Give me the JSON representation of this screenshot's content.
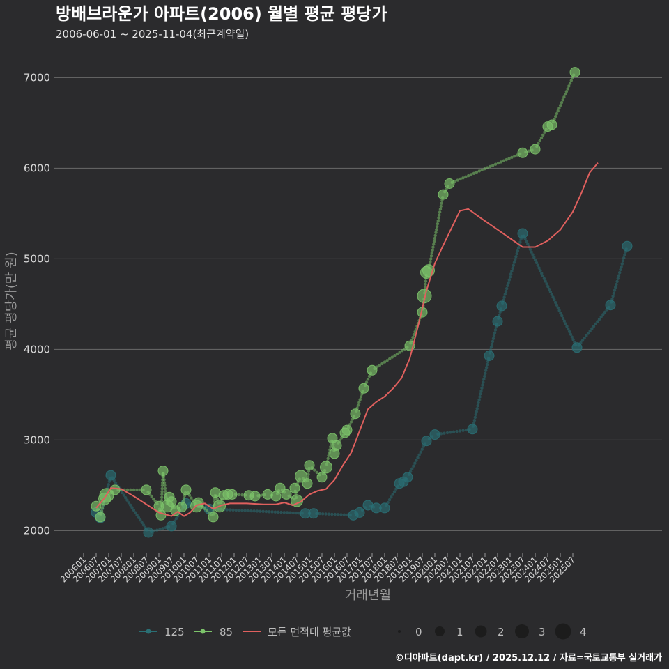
{
  "chart_data": {
    "type": "line",
    "title": "방배브라운가 아파트(2006) 월별 평균 평당가",
    "subtitle": "2006-06-01 ~ 2025-11-04(최근계약일)",
    "xlabel": "거래년월",
    "ylabel": "평균 평당가(만 원)",
    "ylim": [
      1780,
      7380
    ],
    "yticks": [
      2000,
      3000,
      4000,
      5000,
      6000,
      7000
    ],
    "x_categories": [
      "200601",
      "200607",
      "200701",
      "200707",
      "200801",
      "200807",
      "200901",
      "200907",
      "201001",
      "201007",
      "201101",
      "201107",
      "201201",
      "201207",
      "201301",
      "201307",
      "201401",
      "201407",
      "201501",
      "201507",
      "201601",
      "201607",
      "201701",
      "201707",
      "201801",
      "201807",
      "201901",
      "201907",
      "202001",
      "202007",
      "202101",
      "202107",
      "202201",
      "202207",
      "202301",
      "202307",
      "202401",
      "202407",
      "202501",
      "202507"
    ],
    "x_start": "200601",
    "colors": {
      "s125": "#2a6f74",
      "s85": "#7cc36a",
      "avg": "#e0605e",
      "grid": "#6a6a6a",
      "size_legend": "#1c1c1c"
    },
    "series": [
      {
        "name": "125",
        "points": [
          {
            "x": 6,
            "y": 2200,
            "n": 1
          },
          {
            "x": 8,
            "y": 2140,
            "n": 1
          },
          {
            "x": 13,
            "y": 2610,
            "n": 1
          },
          {
            "x": 31,
            "y": 1980,
            "n": 1
          },
          {
            "x": 42,
            "y": 2050,
            "n": 1
          },
          {
            "x": 49,
            "y": 2300,
            "n": 1
          },
          {
            "x": 60,
            "y": 2240,
            "n": 1
          },
          {
            "x": 106,
            "y": 2190,
            "n": 1
          },
          {
            "x": 110,
            "y": 2190,
            "n": 1
          },
          {
            "x": 129,
            "y": 2170,
            "n": 1
          },
          {
            "x": 132,
            "y": 2200,
            "n": 1
          },
          {
            "x": 136,
            "y": 2280,
            "n": 1
          },
          {
            "x": 140,
            "y": 2250,
            "n": 1
          },
          {
            "x": 144,
            "y": 2250,
            "n": 1
          },
          {
            "x": 151,
            "y": 2520,
            "n": 1
          },
          {
            "x": 153,
            "y": 2540,
            "n": 1
          },
          {
            "x": 155,
            "y": 2590,
            "n": 1
          },
          {
            "x": 164,
            "y": 2990,
            "n": 1
          },
          {
            "x": 168,
            "y": 3060,
            "n": 1
          },
          {
            "x": 186,
            "y": 3120,
            "n": 1
          },
          {
            "x": 194,
            "y": 3930,
            "n": 1
          },
          {
            "x": 198,
            "y": 4310,
            "n": 1
          },
          {
            "x": 200,
            "y": 4480,
            "n": 1
          },
          {
            "x": 210,
            "y": 5280,
            "n": 1
          },
          {
            "x": 236,
            "y": 4020,
            "n": 1
          },
          {
            "x": 252,
            "y": 4490,
            "n": 1
          },
          {
            "x": 260,
            "y": 5140,
            "n": 1
          }
        ]
      },
      {
        "name": "85",
        "points": [
          {
            "x": 6,
            "y": 2270,
            "n": 1
          },
          {
            "x": 8,
            "y": 2150,
            "n": 1
          },
          {
            "x": 10,
            "y": 2350,
            "n": 2
          },
          {
            "x": 11,
            "y": 2390,
            "n": 3
          },
          {
            "x": 15,
            "y": 2450,
            "n": 1
          },
          {
            "x": 30,
            "y": 2450,
            "n": 1
          },
          {
            "x": 36,
            "y": 2270,
            "n": 1
          },
          {
            "x": 37,
            "y": 2170,
            "n": 1
          },
          {
            "x": 38,
            "y": 2660,
            "n": 1
          },
          {
            "x": 40,
            "y": 2270,
            "n": 2
          },
          {
            "x": 41,
            "y": 2370,
            "n": 1
          },
          {
            "x": 42,
            "y": 2320,
            "n": 1
          },
          {
            "x": 44,
            "y": 2220,
            "n": 1
          },
          {
            "x": 47,
            "y": 2260,
            "n": 1
          },
          {
            "x": 49,
            "y": 2450,
            "n": 1
          },
          {
            "x": 54,
            "y": 2270,
            "n": 2
          },
          {
            "x": 55,
            "y": 2310,
            "n": 1
          },
          {
            "x": 62,
            "y": 2150,
            "n": 1
          },
          {
            "x": 63,
            "y": 2420,
            "n": 1
          },
          {
            "x": 65,
            "y": 2270,
            "n": 2
          },
          {
            "x": 67,
            "y": 2390,
            "n": 1
          },
          {
            "x": 69,
            "y": 2400,
            "n": 1
          },
          {
            "x": 71,
            "y": 2400,
            "n": 1
          },
          {
            "x": 79,
            "y": 2390,
            "n": 1
          },
          {
            "x": 82,
            "y": 2380,
            "n": 1
          },
          {
            "x": 88,
            "y": 2400,
            "n": 1
          },
          {
            "x": 92,
            "y": 2380,
            "n": 1
          },
          {
            "x": 94,
            "y": 2470,
            "n": 1
          },
          {
            "x": 97,
            "y": 2400,
            "n": 1
          },
          {
            "x": 102,
            "y": 2330,
            "n": 2
          },
          {
            "x": 101,
            "y": 2470,
            "n": 1
          },
          {
            "x": 104,
            "y": 2600,
            "n": 2
          },
          {
            "x": 107,
            "y": 2520,
            "n": 1
          },
          {
            "x": 108,
            "y": 2720,
            "n": 1
          },
          {
            "x": 114,
            "y": 2590,
            "n": 1
          },
          {
            "x": 116,
            "y": 2700,
            "n": 2
          },
          {
            "x": 119,
            "y": 3020,
            "n": 1
          },
          {
            "x": 120,
            "y": 2850,
            "n": 1
          },
          {
            "x": 121,
            "y": 2940,
            "n": 1
          },
          {
            "x": 125,
            "y": 3080,
            "n": 1
          },
          {
            "x": 126,
            "y": 3110,
            "n": 1
          },
          {
            "x": 130,
            "y": 3290,
            "n": 1
          },
          {
            "x": 134,
            "y": 3570,
            "n": 1
          },
          {
            "x": 138,
            "y": 3770,
            "n": 1
          },
          {
            "x": 156,
            "y": 4040,
            "n": 1
          },
          {
            "x": 162,
            "y": 4410,
            "n": 1
          },
          {
            "x": 163,
            "y": 4590,
            "n": 3
          },
          {
            "x": 164,
            "y": 4850,
            "n": 2
          },
          {
            "x": 165,
            "y": 4870,
            "n": 2
          },
          {
            "x": 172,
            "y": 5710,
            "n": 1
          },
          {
            "x": 175,
            "y": 5830,
            "n": 1
          },
          {
            "x": 210,
            "y": 6170,
            "n": 1
          },
          {
            "x": 216,
            "y": 6210,
            "n": 1
          },
          {
            "x": 222,
            "y": 6460,
            "n": 1
          },
          {
            "x": 224,
            "y": 6480,
            "n": 1
          },
          {
            "x": 235,
            "y": 7060,
            "n": 1
          }
        ]
      },
      {
        "name": "모든 면적대 평균값",
        "points": [
          {
            "x": 6,
            "y": 2250
          },
          {
            "x": 10,
            "y": 2360
          },
          {
            "x": 13,
            "y": 2470
          },
          {
            "x": 18,
            "y": 2460
          },
          {
            "x": 24,
            "y": 2380
          },
          {
            "x": 30,
            "y": 2290
          },
          {
            "x": 36,
            "y": 2200
          },
          {
            "x": 42,
            "y": 2160
          },
          {
            "x": 45,
            "y": 2210
          },
          {
            "x": 48,
            "y": 2160
          },
          {
            "x": 51,
            "y": 2200
          },
          {
            "x": 54,
            "y": 2280
          },
          {
            "x": 58,
            "y": 2300
          },
          {
            "x": 62,
            "y": 2240
          },
          {
            "x": 66,
            "y": 2280
          },
          {
            "x": 70,
            "y": 2300
          },
          {
            "x": 78,
            "y": 2300
          },
          {
            "x": 86,
            "y": 2290
          },
          {
            "x": 92,
            "y": 2290
          },
          {
            "x": 96,
            "y": 2310
          },
          {
            "x": 100,
            "y": 2280
          },
          {
            "x": 104,
            "y": 2320
          },
          {
            "x": 108,
            "y": 2400
          },
          {
            "x": 112,
            "y": 2440
          },
          {
            "x": 116,
            "y": 2460
          },
          {
            "x": 120,
            "y": 2560
          },
          {
            "x": 124,
            "y": 2720
          },
          {
            "x": 128,
            "y": 2860
          },
          {
            "x": 132,
            "y": 3100
          },
          {
            "x": 136,
            "y": 3340
          },
          {
            "x": 140,
            "y": 3420
          },
          {
            "x": 144,
            "y": 3480
          },
          {
            "x": 148,
            "y": 3570
          },
          {
            "x": 152,
            "y": 3680
          },
          {
            "x": 156,
            "y": 3900
          },
          {
            "x": 160,
            "y": 4260
          },
          {
            "x": 164,
            "y": 4650
          },
          {
            "x": 168,
            "y": 4950
          },
          {
            "x": 172,
            "y": 5150
          },
          {
            "x": 176,
            "y": 5340
          },
          {
            "x": 180,
            "y": 5530
          },
          {
            "x": 184,
            "y": 5550
          },
          {
            "x": 190,
            "y": 5450
          },
          {
            "x": 200,
            "y": 5290
          },
          {
            "x": 210,
            "y": 5130
          },
          {
            "x": 216,
            "y": 5130
          },
          {
            "x": 222,
            "y": 5200
          },
          {
            "x": 228,
            "y": 5320
          },
          {
            "x": 234,
            "y": 5520
          },
          {
            "x": 238,
            "y": 5720
          },
          {
            "x": 242,
            "y": 5950
          },
          {
            "x": 246,
            "y": 6060
          }
        ]
      }
    ],
    "legend": {
      "series_labels": [
        "125",
        "85",
        "모든 면적대 평균값"
      ],
      "size_labels": [
        "0",
        "1",
        "2",
        "3",
        "4"
      ],
      "placement": "bottom"
    },
    "caption": "©디아파트(dapt.kr) / 2025.12.12 / 자료=국토교통부 실거래가"
  }
}
